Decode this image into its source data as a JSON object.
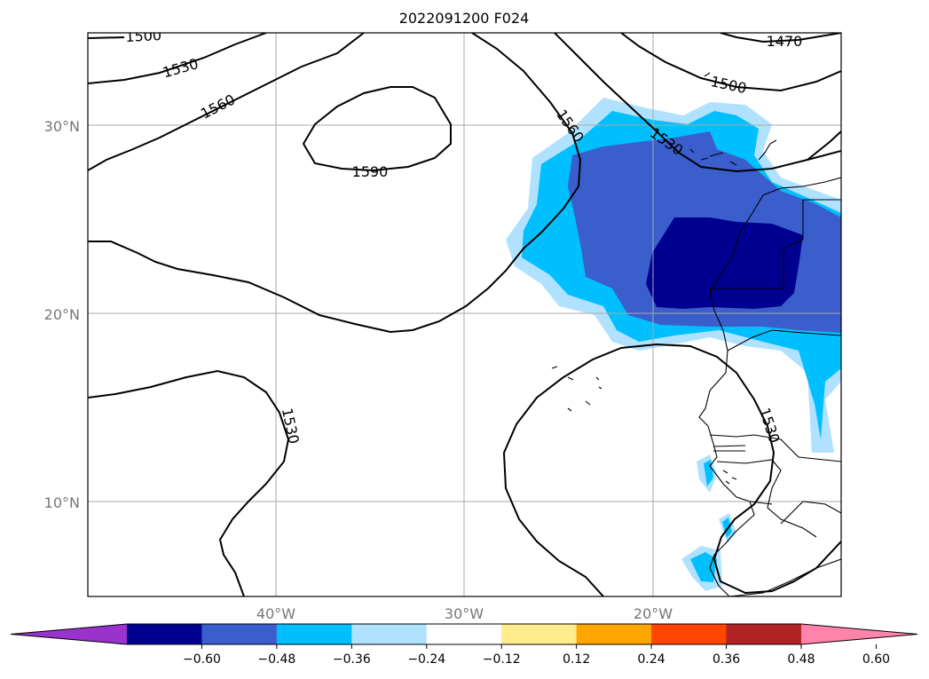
{
  "title": "2022091200 F024",
  "map": {
    "lat_labels": [
      "30°N",
      "20°N",
      "10°N"
    ],
    "lon_labels": [
      "40°W",
      "30°W",
      "20°W"
    ],
    "contour_labels": [
      "1500",
      "1530",
      "1560",
      "1590",
      "1470",
      "1560",
      "1530",
      "1500",
      "1530",
      "1530"
    ]
  },
  "colorbar": {
    "tick_labels": [
      "−0.60",
      "−0.48",
      "−0.36",
      "−0.24",
      "−0.12",
      "0.12",
      "0.24",
      "0.36",
      "0.48",
      "0.60"
    ],
    "colors": [
      "#9933cc",
      "#000090",
      "#3a5fcd",
      "#00bfff",
      "#b0e2ff",
      "#ffffff",
      "#ffec8b",
      "#ffa500",
      "#ff4500",
      "#b22222",
      "#ff83aa"
    ]
  }
}
